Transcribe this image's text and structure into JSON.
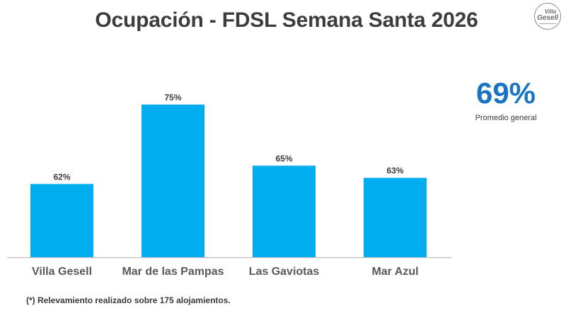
{
  "header": {
    "title": "Ocupación - FDSL Semana Santa 2026",
    "logo": {
      "line1": "Villa",
      "line2": "Gesell",
      "icon": "villa-gesell-logo"
    }
  },
  "kpi": {
    "value": "69%",
    "label": "Promedio general",
    "color": "#1a74c4"
  },
  "footnote": "(*) Relevamiento realizado sobre 175 alojamientos.",
  "chart_data": {
    "type": "bar",
    "title": "Ocupación - FDSL Semana Santa 2026",
    "categories": [
      "Villa Gesell",
      "Mar de las Pampas",
      "Las Gaviotas",
      "Mar Azul"
    ],
    "values": [
      62,
      75,
      65,
      63
    ],
    "value_labels": [
      "62%",
      "75%",
      "65%",
      "63%"
    ],
    "unit": "%",
    "xlabel": "",
    "ylabel": "",
    "ylim": [
      50,
      100
    ],
    "grid": false,
    "bar_color": "#00adef",
    "axis_color": "#bfbfbf"
  }
}
